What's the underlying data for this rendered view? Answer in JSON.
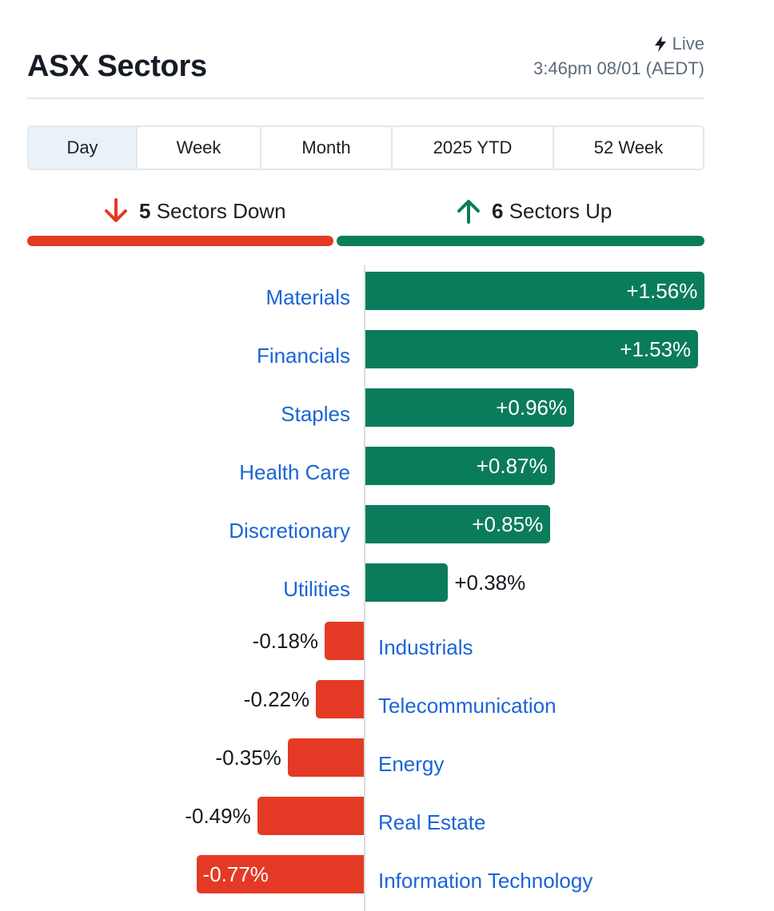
{
  "header": {
    "title": "ASX Sectors",
    "live_label": "Live",
    "timestamp": "3:46pm 08/01 (AEDT)"
  },
  "tabs": [
    {
      "label": "Day",
      "active": true
    },
    {
      "label": "Week",
      "active": false
    },
    {
      "label": "Month",
      "active": false
    },
    {
      "label": "2025 YTD",
      "active": false
    },
    {
      "label": "52 Week",
      "active": false
    }
  ],
  "summary": {
    "down_count": "5",
    "down_label": "Sectors Down",
    "up_count": "6",
    "up_label": "Sectors Up"
  },
  "colors": {
    "up": "#0b7c5b",
    "down": "#e43a25",
    "link": "#1a64d6"
  },
  "icons": {
    "live": "lightning-icon",
    "down": "arrow-down-icon",
    "up": "arrow-up-icon"
  },
  "chart_data": {
    "type": "bar",
    "orientation": "horizontal",
    "categories": [
      "Materials",
      "Financials",
      "Staples",
      "Health Care",
      "Discretionary",
      "Utilities",
      "Industrials",
      "Telecommunication",
      "Energy",
      "Real Estate",
      "Information Technology"
    ],
    "values": [
      1.56,
      1.53,
      0.96,
      0.87,
      0.85,
      0.38,
      -0.18,
      -0.22,
      -0.35,
      -0.49,
      -0.77
    ],
    "value_labels": [
      "+1.56%",
      "+1.53%",
      "+0.96%",
      "+0.87%",
      "+0.85%",
      "+0.38%",
      "-0.18%",
      "-0.22%",
      "-0.35%",
      "-0.49%",
      "-0.77%"
    ],
    "unit": "%",
    "grid": false
  }
}
